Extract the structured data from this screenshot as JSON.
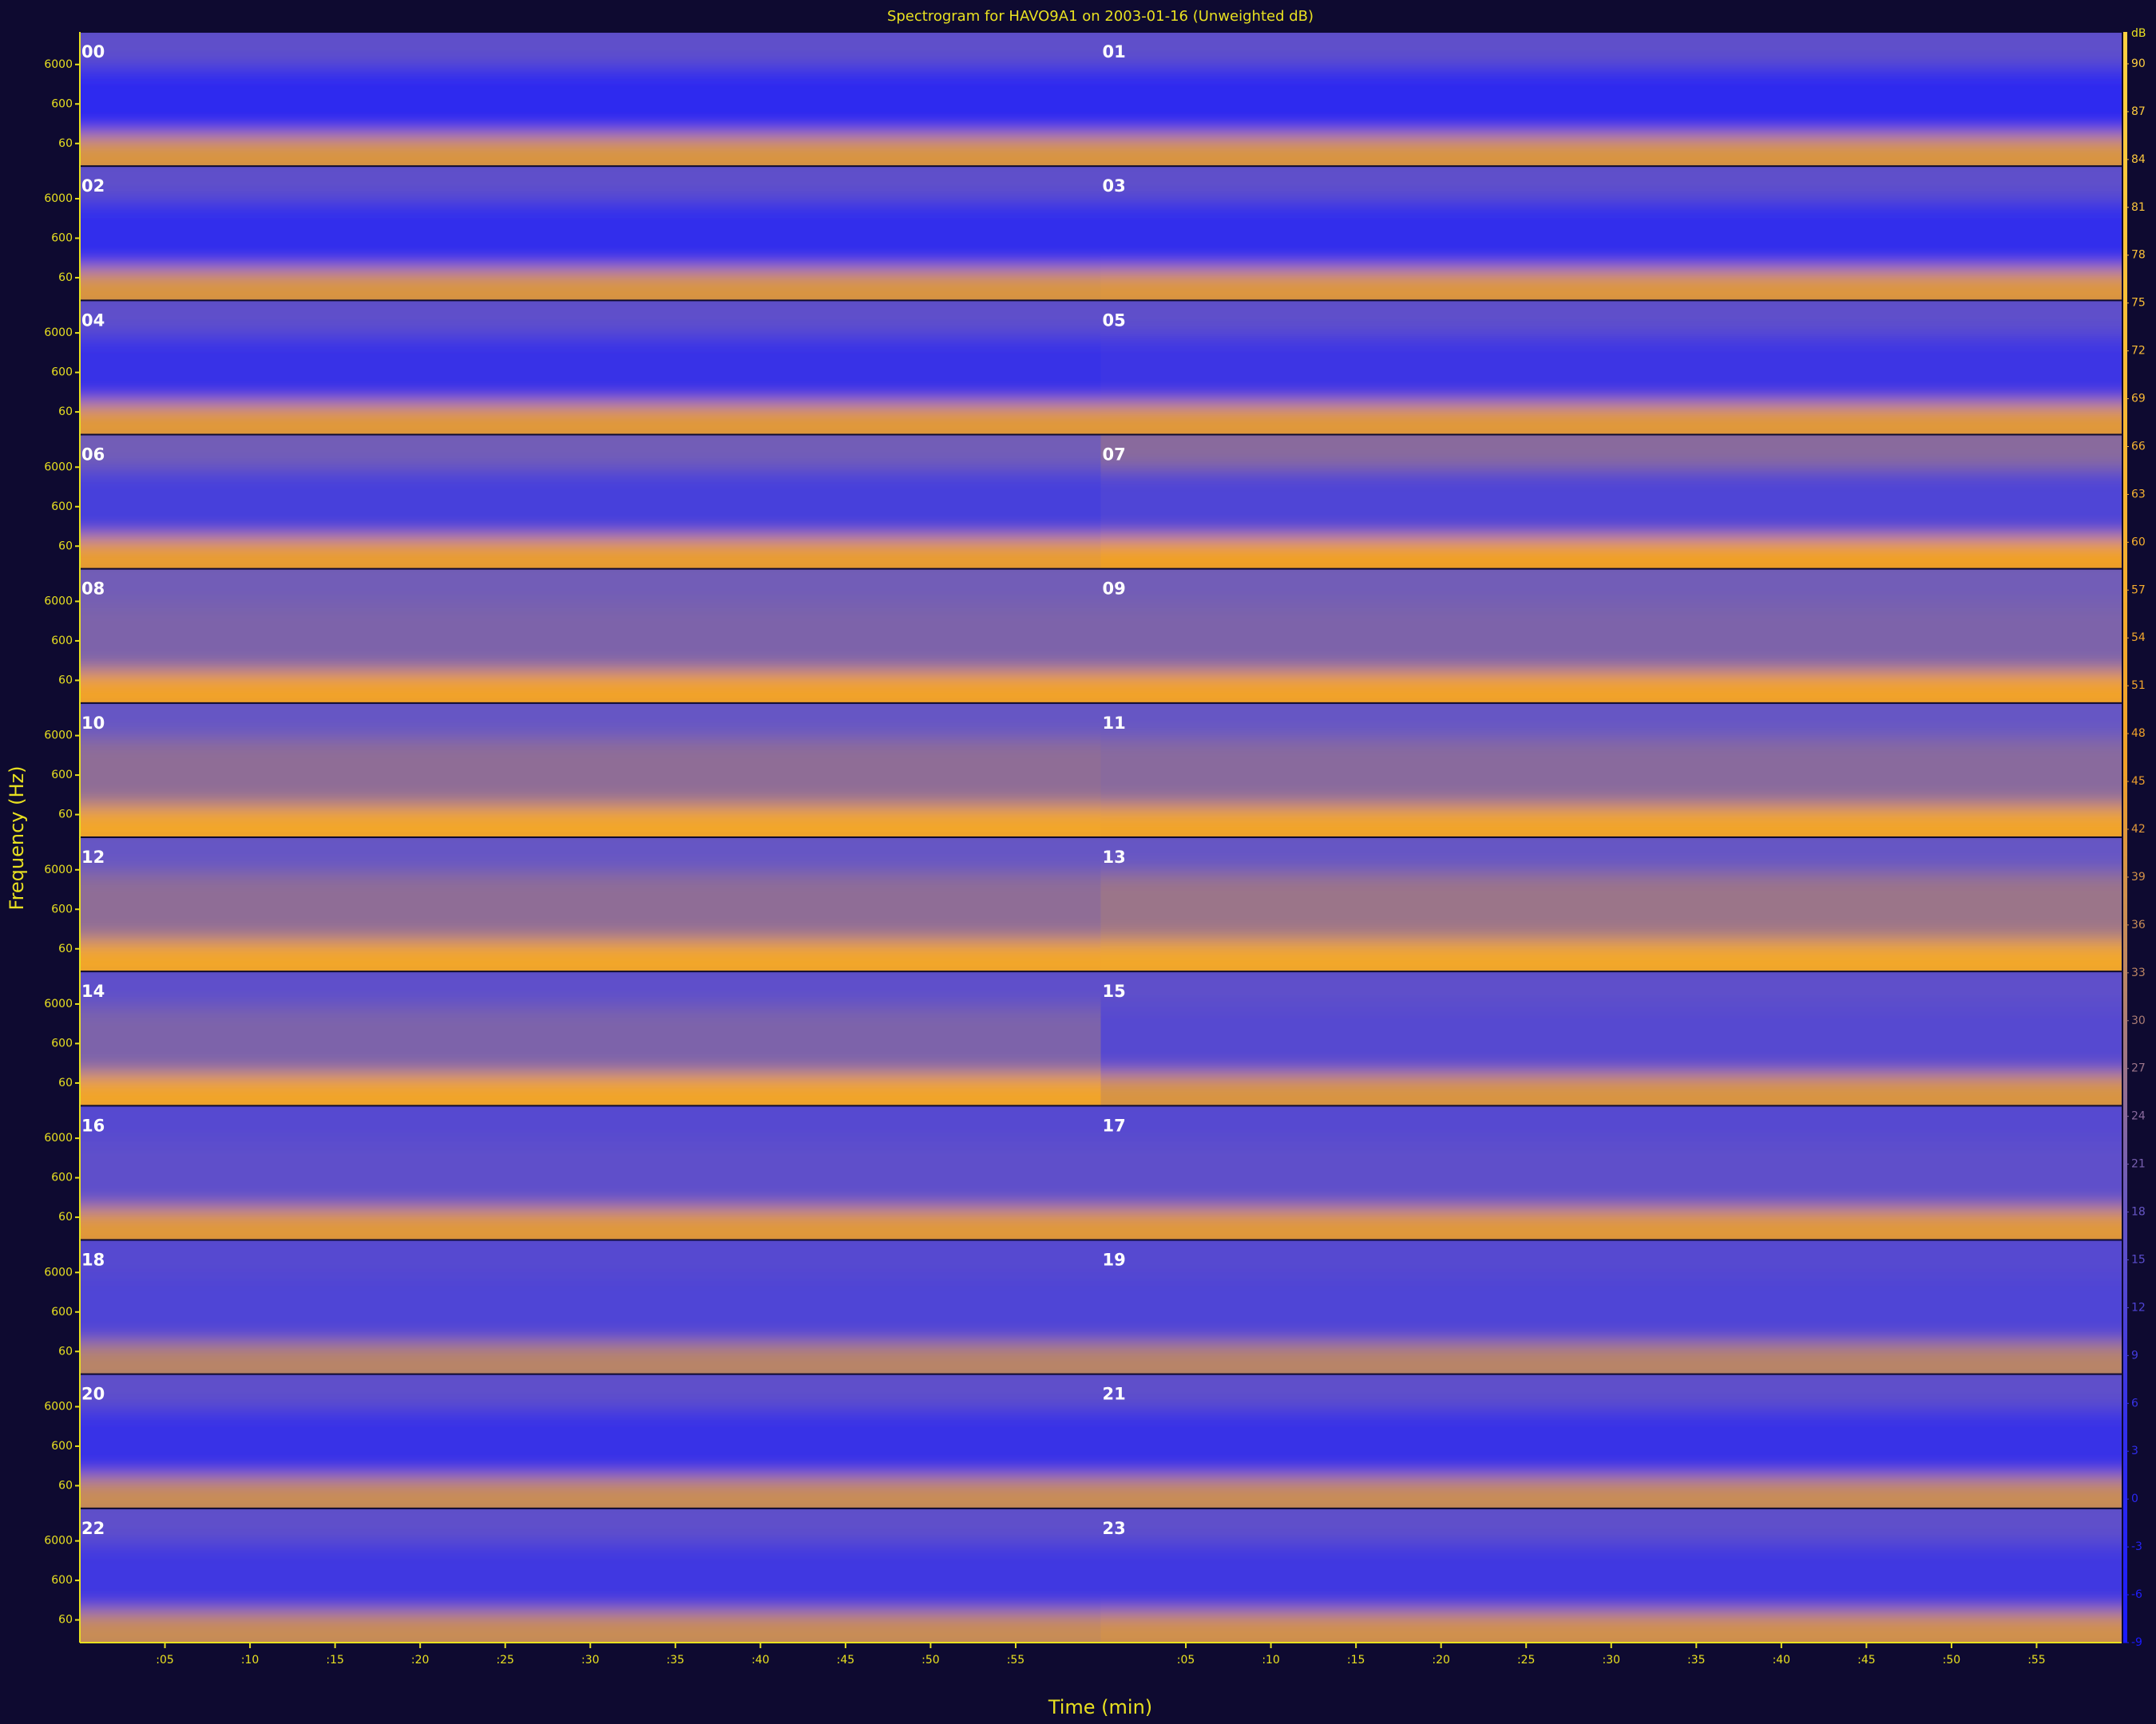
{
  "chart_data": {
    "type": "spectrogram",
    "title": "Spectrogram for HAVO9A1 on 2003-01-16 (Unweighted dB)",
    "x_label": "Time (min)",
    "y_label": "Frequency (Hz)",
    "colorbar_label": "dB",
    "band_edges": [
      16,
      100,
      5000,
      40000
    ],
    "panels": [
      {
        "name": "00",
        "values": [
          40,
          2,
          16
        ]
      },
      {
        "name": "01",
        "values": [
          40,
          2,
          16
        ]
      },
      {
        "name": "02",
        "values": [
          40,
          4,
          16
        ]
      },
      {
        "name": "03",
        "values": [
          41,
          4,
          16
        ]
      },
      {
        "name": "04",
        "values": [
          42,
          6,
          16
        ]
      },
      {
        "name": "05",
        "values": [
          42,
          7,
          16
        ]
      },
      {
        "name": "06",
        "values": [
          44,
          10,
          20
        ]
      },
      {
        "name": "07",
        "values": [
          46,
          12,
          24
        ]
      },
      {
        "name": "08",
        "values": [
          48,
          22,
          20
        ]
      },
      {
        "name": "09",
        "values": [
          48,
          22,
          20
        ]
      },
      {
        "name": "10",
        "values": [
          52,
          25,
          18
        ]
      },
      {
        "name": "11",
        "values": [
          50,
          24,
          18
        ]
      },
      {
        "name": "12",
        "values": [
          52,
          25,
          18
        ]
      },
      {
        "name": "13",
        "values": [
          53,
          27,
          18
        ]
      },
      {
        "name": "14",
        "values": [
          50,
          22,
          16
        ]
      },
      {
        "name": "15",
        "values": [
          40,
          14,
          16
        ]
      },
      {
        "name": "16",
        "values": [
          42,
          16,
          14
        ]
      },
      {
        "name": "17",
        "values": [
          42,
          16,
          14
        ]
      },
      {
        "name": "18",
        "values": [
          32,
          12,
          14
        ]
      },
      {
        "name": "19",
        "values": [
          32,
          12,
          14
        ]
      },
      {
        "name": "20",
        "values": [
          36,
          6,
          16
        ]
      },
      {
        "name": "21",
        "values": [
          36,
          6,
          16
        ]
      },
      {
        "name": "22",
        "values": [
          36,
          8,
          16
        ]
      },
      {
        "name": "23",
        "values": [
          38,
          8,
          16
        ]
      }
    ],
    "xlim": [
      0,
      60
    ],
    "xticks": [
      {
        "value": 5,
        "label": ":05"
      },
      {
        "value": 10,
        "label": ":10"
      },
      {
        "value": 15,
        "label": ":15"
      },
      {
        "value": 20,
        "label": ":20"
      },
      {
        "value": 25,
        "label": ":25"
      },
      {
        "value": 30,
        "label": ":30"
      },
      {
        "value": 35,
        "label": ":35"
      },
      {
        "value": 40,
        "label": ":40"
      },
      {
        "value": 45,
        "label": ":45"
      },
      {
        "value": 50,
        "label": ":50"
      },
      {
        "value": 55,
        "label": ":55"
      }
    ],
    "ylim": [
      16,
      40000
    ],
    "yscale": "log",
    "yticks": [
      60,
      600,
      6000
    ],
    "clim": [
      -9,
      92
    ],
    "cticks": [
      90,
      87,
      84,
      81,
      78,
      75,
      72,
      69,
      66,
      63,
      60,
      57,
      54,
      51,
      48,
      45,
      42,
      39,
      36,
      33,
      30,
      27,
      24,
      21,
      18,
      15,
      12,
      9,
      6,
      3,
      0,
      -3,
      -6,
      -9
    ],
    "colorscale": [
      {
        "value": -9,
        "color": "#1a1aff"
      },
      {
        "value": 5,
        "color": "#3430ea"
      },
      {
        "value": 18,
        "color": "#6656c4"
      },
      {
        "value": 32,
        "color": "#b88468"
      },
      {
        "value": 46,
        "color": "#f0a028"
      },
      {
        "value": 92,
        "color": "#ffd040"
      }
    ]
  }
}
